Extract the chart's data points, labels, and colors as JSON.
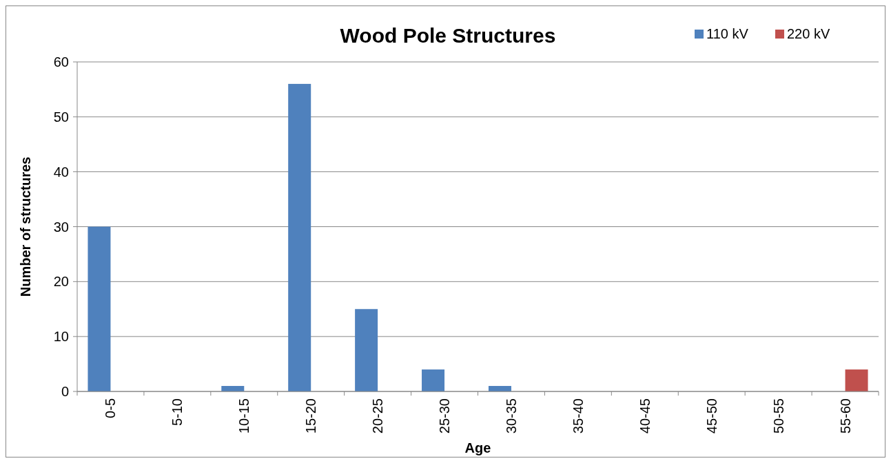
{
  "chart_data": {
    "type": "bar",
    "title": "Wood Pole Structures",
    "xlabel": "Age",
    "ylabel": "Number of structures",
    "categories": [
      "0-5",
      "5-10",
      "10-15",
      "15-20",
      "20-25",
      "25-30",
      "30-35",
      "35-40",
      "40-45",
      "45-50",
      "50-55",
      "55-60"
    ],
    "series": [
      {
        "name": "110 kV",
        "color": "#4f81bd",
        "values": [
          30,
          0,
          1,
          56,
          15,
          4,
          1,
          0,
          0,
          0,
          0,
          0
        ]
      },
      {
        "name": "220 kV",
        "color": "#c0504d",
        "values": [
          0,
          0,
          0,
          0,
          0,
          0,
          0,
          0,
          0,
          0,
          0,
          4
        ]
      }
    ],
    "ylim": [
      0,
      60
    ],
    "yticks": [
      0,
      10,
      20,
      30,
      40,
      50,
      60
    ],
    "grid": "y",
    "legend": "top right"
  }
}
